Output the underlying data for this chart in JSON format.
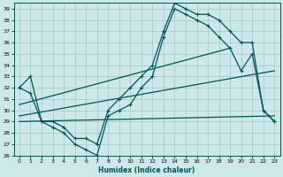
{
  "bg_color": "#cce8e8",
  "grid_color": "#aacccc",
  "line_color": "#005555",
  "xlabel": "Humidex (Indice chaleur)",
  "xlim": [
    -0.5,
    23.5
  ],
  "ylim": [
    26,
    39.5
  ],
  "xtick_labels": [
    "0",
    "1",
    "2",
    "3",
    "4",
    "5",
    "6",
    "7",
    "8",
    "9",
    "10",
    "11",
    "12",
    "13",
    "14",
    "15",
    "16",
    "17",
    "18",
    "19",
    "20",
    "21",
    "22",
    "23"
  ],
  "ytick_labels": [
    "26",
    "27",
    "28",
    "29",
    "30",
    "31",
    "32",
    "33",
    "34",
    "35",
    "36",
    "37",
    "38",
    "39"
  ],
  "ytick_vals": [
    26,
    27,
    28,
    29,
    30,
    31,
    32,
    33,
    34,
    35,
    36,
    37,
    38,
    39
  ],
  "curve1": [
    32,
    33,
    29,
    29,
    28.5,
    27.5,
    27.5,
    27,
    30,
    31,
    32,
    33,
    34,
    37,
    39.5,
    39,
    38.5,
    38.5,
    38,
    37,
    36,
    36,
    30,
    29
  ],
  "curve2": [
    32,
    31.5,
    29,
    28.5,
    28,
    27,
    26.5,
    26,
    29.5,
    30,
    30.5,
    32,
    33,
    36.5,
    39,
    38.5,
    38,
    37.5,
    36.5,
    35.5,
    33.5,
    35,
    30,
    29
  ],
  "trend1_x": [
    0,
    19
  ],
  "trend1_y": [
    30.5,
    35.5
  ],
  "trend2_x": [
    0,
    23
  ],
  "trend2_y": [
    29.5,
    33.5
  ],
  "trend3_x": [
    0,
    23
  ],
  "trend3_y": [
    29,
    29.5
  ]
}
